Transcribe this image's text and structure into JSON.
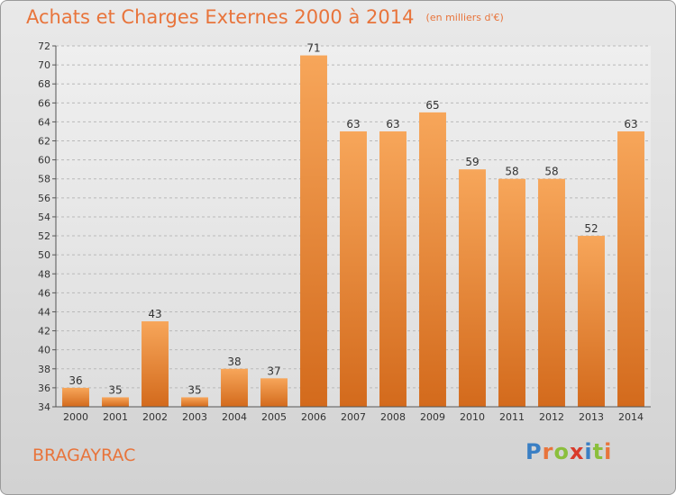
{
  "header": {
    "title": "Achats et Charges Externes 2000 à 2014",
    "subtitle": "(en milliers d'€)"
  },
  "footer": {
    "commune": "BRAGAYRAC",
    "logo_letters": [
      "P",
      "r",
      "o",
      "x",
      "i",
      "t",
      "i"
    ],
    "logo_colors": [
      "#3a7fc4",
      "#e8743b",
      "#8bbf3c",
      "#d93b2b",
      "#3a7fc4",
      "#8bbf3c",
      "#e8743b"
    ]
  },
  "colors": {
    "accent": "#e8743b",
    "bar_light": "#f7a65a",
    "bar_dark": "#d36a1c"
  },
  "chart_data": {
    "type": "bar",
    "title": "Achats et Charges Externes 2000 à 2014",
    "subtitle": "(en milliers d'€)",
    "categories": [
      "2000",
      "2001",
      "2002",
      "2003",
      "2004",
      "2005",
      "2006",
      "2007",
      "2008",
      "2009",
      "2010",
      "2011",
      "2012",
      "2013",
      "2014"
    ],
    "values": [
      36,
      35,
      43,
      35,
      38,
      37,
      71,
      63,
      63,
      65,
      59,
      58,
      58,
      52,
      63
    ],
    "ylim": [
      34,
      72
    ],
    "yticks": [
      34,
      36,
      38,
      40,
      42,
      44,
      46,
      48,
      50,
      52,
      54,
      56,
      58,
      60,
      62,
      64,
      66,
      68,
      70,
      72
    ],
    "grid": true,
    "data_labels": true
  }
}
